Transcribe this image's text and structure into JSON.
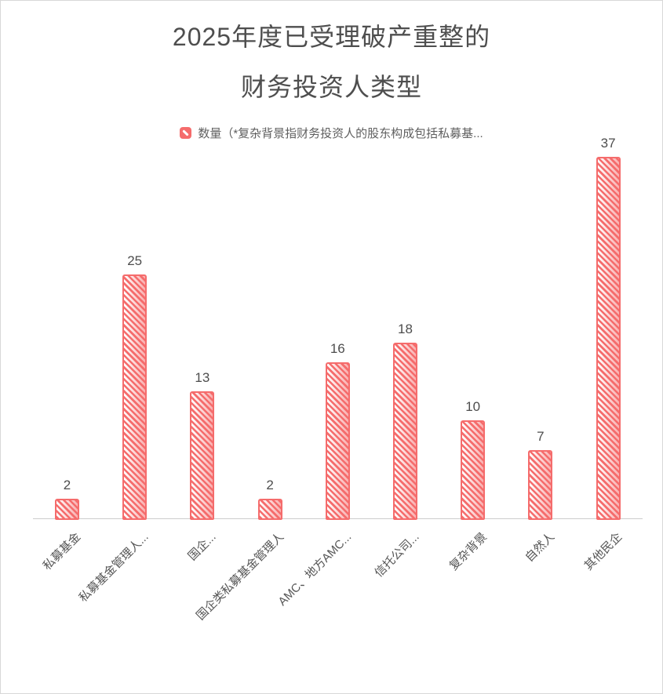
{
  "title": {
    "line1": "2025年度已受理破产重整的",
    "line2": "财务投资人类型"
  },
  "legend": {
    "label": "数量（*复杂背景指财务投资人的股东构成包括私募基..."
  },
  "chart_data": {
    "type": "bar",
    "title": "2025年度已受理破产重整的财务投资人类型",
    "series": [
      {
        "name": "数量（*复杂背景指财务投资人的股东构成包括私募基...",
        "values": [
          2,
          25,
          13,
          2,
          16,
          18,
          10,
          7,
          37
        ]
      }
    ],
    "categories": [
      "私募基金",
      "私募基金管理人...",
      "国企...",
      "国企类私募基金管理人",
      "AMC、地方AMC...",
      "信托公司...",
      "复杂背景",
      "自然人",
      "其他民企"
    ],
    "xlabel": "",
    "ylabel": "",
    "ylim": [
      0,
      40
    ],
    "grid": false,
    "legend_position": "top",
    "data_labels": true,
    "bar_style": "diagonal-hatch",
    "colors": {
      "bar": "#f56c6c",
      "axis_line": "#cccccc",
      "text": "#4e4e4e"
    }
  }
}
